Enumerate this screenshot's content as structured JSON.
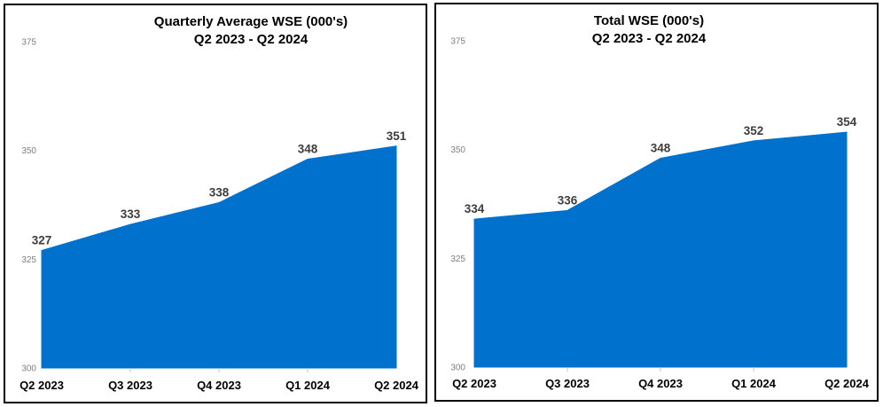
{
  "page": {
    "background": "#ffffff",
    "panel_border_color": "#000000"
  },
  "chart_data": [
    {
      "type": "area",
      "title": "Quarterly Average WSE (000's)",
      "subtitle": "Q2 2023 - Q2 2024",
      "categories": [
        "Q2 2023",
        "Q3 2023",
        "Q4 2023",
        "Q1 2024",
        "Q2 2024"
      ],
      "values": [
        327,
        333,
        338,
        348,
        351
      ],
      "data_labels": [
        "327",
        "333",
        "338",
        "348",
        "351"
      ],
      "ylim": [
        300,
        375
      ],
      "y_ticks": [
        375,
        350,
        325,
        300
      ],
      "xlabel": "",
      "ylabel": "",
      "grid": false,
      "legend": "none",
      "fill_color": "#0072CE",
      "data_label_color": "#3d3d3d",
      "x_axis_label_color": "#000000",
      "y_axis_label_color": "#7f7f7f",
      "tick_color": "#c3c3c3"
    },
    {
      "type": "area",
      "title": "Total WSE (000's)",
      "subtitle": "Q2 2023 - Q2 2024",
      "categories": [
        "Q2 2023",
        "Q3 2023",
        "Q4 2023",
        "Q1 2024",
        "Q2 2024"
      ],
      "values": [
        334,
        336,
        348,
        352,
        354
      ],
      "data_labels": [
        "334",
        "336",
        "348",
        "352",
        "354"
      ],
      "ylim": [
        300,
        375
      ],
      "y_ticks": [
        375,
        350,
        325,
        300
      ],
      "xlabel": "",
      "ylabel": "",
      "grid": false,
      "legend": "none",
      "fill_color": "#0072CE",
      "data_label_color": "#3d3d3d",
      "x_axis_label_color": "#000000",
      "y_axis_label_color": "#7f7f7f",
      "tick_color": "#c3c3c3"
    }
  ]
}
